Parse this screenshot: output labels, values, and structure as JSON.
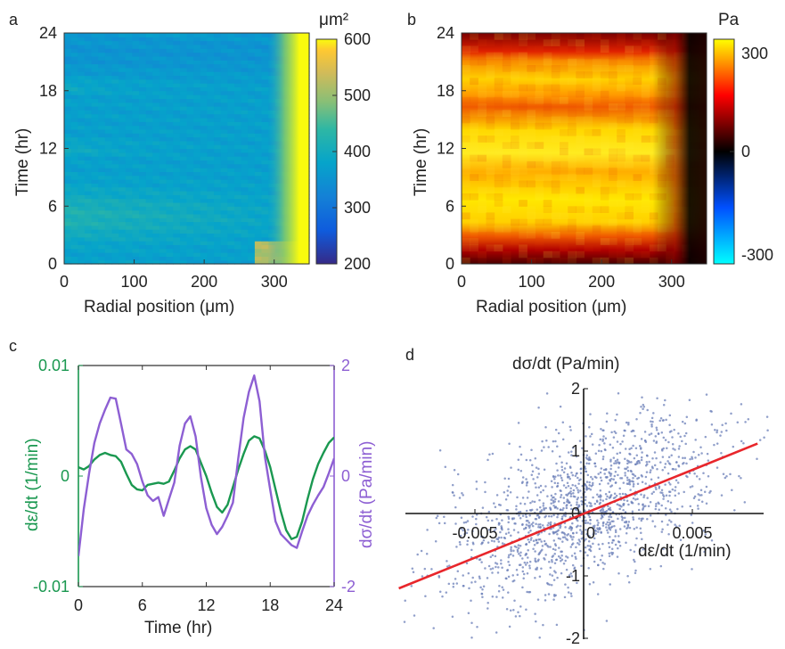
{
  "panels": {
    "a": {
      "letter": "a"
    },
    "b": {
      "letter": "b"
    },
    "c": {
      "letter": "c"
    },
    "d": {
      "letter": "d"
    }
  },
  "chart_data": [
    {
      "id": "a",
      "type": "heatmap",
      "xlabel": "Radial position (μm)",
      "ylabel": "Time (hr)",
      "xticks": [
        "0",
        "100",
        "200",
        "300"
      ],
      "yticks": [
        "0",
        "6",
        "12",
        "18",
        "24"
      ],
      "xlim": [
        0,
        350
      ],
      "ylim": [
        0,
        24
      ],
      "colorbar": {
        "label": "μm²",
        "ticks": [
          "200",
          "300",
          "400",
          "500",
          "600"
        ],
        "range": [
          200,
          600
        ],
        "colormap": "parula"
      },
      "colors": {
        "low": "#352a87",
        "mid": "#1fa0c9",
        "high": "#f9fb0e"
      }
    },
    {
      "id": "b",
      "type": "heatmap",
      "xlabel": "Radial position (μm)",
      "ylabel": "Time (hr)",
      "xticks": [
        "0",
        "100",
        "200",
        "300"
      ],
      "yticks": [
        "0",
        "6",
        "12",
        "18",
        "24"
      ],
      "xlim": [
        0,
        350
      ],
      "ylim": [
        0,
        24
      ],
      "colorbar": {
        "label": "Pa",
        "ticks": [
          "-300",
          "0",
          "300"
        ],
        "range": [
          -300,
          300
        ],
        "colormap": "diverging cyan-blue-black-red-yellow"
      },
      "colors": {
        "low": "#00ffff",
        "mid": "#000000",
        "high": "#ffff00"
      }
    },
    {
      "id": "c",
      "type": "line",
      "xlabel": "Time (hr)",
      "xticks": [
        "0",
        "6",
        "12",
        "18",
        "24"
      ],
      "xlim": [
        0,
        24
      ],
      "y_left": {
        "label": "dε/dt (1/min)",
        "ticks": [
          "-0.01",
          "0",
          "0.01"
        ],
        "lim": [
          -0.01,
          0.01
        ],
        "color": "#1a9850"
      },
      "y_right": {
        "label": "dσ/dt (Pa/min)",
        "ticks": [
          "-2",
          "0",
          "2"
        ],
        "lim": [
          -2,
          2
        ],
        "color": "#8d5fd3"
      },
      "series": [
        {
          "axis": "left",
          "color": "#1a9850",
          "x": [
            0.0,
            0.5,
            1.0,
            1.5,
            2.0,
            2.5,
            3.0,
            3.5,
            4.0,
            4.5,
            5.0,
            5.5,
            6.0,
            6.5,
            7.0,
            7.5,
            8.0,
            8.5,
            9.0,
            9.5,
            10.0,
            10.5,
            11.0,
            11.5,
            12.0,
            12.5,
            13.0,
            13.5,
            14.0,
            14.5,
            15.0,
            15.5,
            16.0,
            16.5,
            17.0,
            17.5,
            18.0,
            18.5,
            19.0,
            19.5,
            20.0,
            20.5,
            21.0,
            21.5,
            22.0,
            22.5,
            23.0,
            23.5,
            24.0
          ],
          "y": [
            0.0008,
            0.0006,
            0.0009,
            0.0015,
            0.0019,
            0.0021,
            0.0019,
            0.0018,
            0.0013,
            0.0002,
            -0.0008,
            -0.0012,
            -0.0013,
            -0.0008,
            -0.0007,
            -0.0006,
            -0.0007,
            -0.0005,
            0.0005,
            0.0016,
            0.0024,
            0.0027,
            0.0024,
            0.0012,
            0.0,
            -0.0015,
            -0.0028,
            -0.0033,
            -0.0026,
            -0.001,
            0.0006,
            0.002,
            0.0032,
            0.0036,
            0.0034,
            0.0023,
            0.0008,
            -0.0012,
            -0.0032,
            -0.0049,
            -0.0057,
            -0.0055,
            -0.0041,
            -0.0021,
            -0.0003,
            0.0011,
            0.0021,
            0.003,
            0.0035
          ]
        },
        {
          "axis": "right",
          "color": "#8d5fd3",
          "x": [
            0.0,
            0.5,
            1.0,
            1.5,
            2.0,
            2.5,
            3.0,
            3.5,
            4.0,
            4.5,
            5.0,
            5.5,
            6.0,
            6.5,
            7.0,
            7.5,
            8.0,
            8.5,
            9.0,
            9.5,
            10.0,
            10.5,
            11.0,
            11.5,
            12.0,
            12.5,
            13.0,
            13.5,
            14.0,
            14.5,
            15.0,
            15.5,
            16.0,
            16.5,
            17.0,
            17.5,
            18.0,
            18.5,
            19.0,
            19.5,
            20.0,
            20.5,
            21.0,
            21.5,
            22.0,
            22.5,
            23.0,
            23.5,
            24.0
          ],
          "y": [
            -1.45,
            -0.6,
            0.05,
            0.6,
            0.95,
            1.2,
            1.42,
            1.4,
            0.95,
            0.48,
            0.4,
            0.22,
            -0.1,
            -0.35,
            -0.45,
            -0.38,
            -0.72,
            -0.42,
            -0.12,
            0.55,
            0.95,
            1.08,
            0.72,
            -0.02,
            -0.58,
            -0.88,
            -1.05,
            -0.92,
            -0.72,
            -0.48,
            0.32,
            1.05,
            1.52,
            1.82,
            1.35,
            0.35,
            -0.25,
            -0.82,
            -1.05,
            -1.15,
            -1.25,
            -1.3,
            -1.0,
            -0.72,
            -0.52,
            -0.35,
            -0.2,
            0.05,
            0.32
          ]
        }
      ]
    },
    {
      "id": "d",
      "type": "scatter",
      "title": "dσ/dt (Pa/min)",
      "xlabel": "dε/dt (1/min)",
      "xticks": [
        "-0.005",
        "0",
        "0.005"
      ],
      "yticks": [
        "-2",
        "-1",
        "0",
        "1",
        "2"
      ],
      "xlim": [
        -0.0085,
        0.0085
      ],
      "ylim": [
        -2,
        2
      ],
      "point_color": "#6b7fb8",
      "fit_line": {
        "color": "#e8262b",
        "x": [
          -0.0085,
          0.008
        ],
        "y": [
          -1.2,
          1.12
        ]
      }
    }
  ]
}
